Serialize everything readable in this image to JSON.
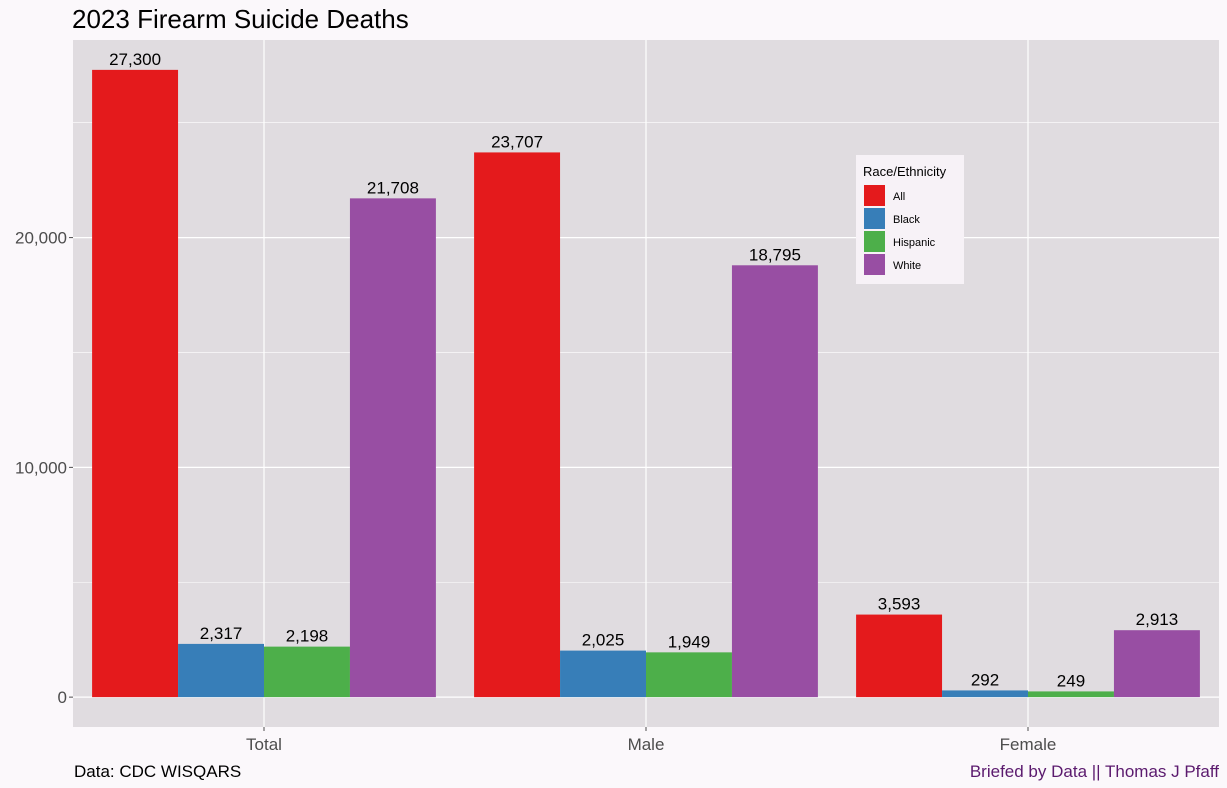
{
  "chart_data": {
    "type": "bar",
    "title": "2023 Firearm Suicide Deaths",
    "categories": [
      "Total",
      "Male",
      "Female"
    ],
    "series": [
      {
        "name": "All",
        "color": "#E41A1C",
        "values": [
          27300,
          23707,
          3593
        ],
        "labels": [
          "27,300",
          "23,707",
          "3,593"
        ]
      },
      {
        "name": "Black",
        "color": "#377EB8",
        "values": [
          2317,
          2025,
          292
        ],
        "labels": [
          "2,317",
          "2,025",
          "292"
        ]
      },
      {
        "name": "Hispanic",
        "color": "#4DAF4A",
        "values": [
          2198,
          1949,
          249
        ],
        "labels": [
          "2,198",
          "1,949",
          "249"
        ]
      },
      {
        "name": "White",
        "color": "#984EA3",
        "values": [
          21708,
          18795,
          2913
        ],
        "labels": [
          "21,708",
          "18,795",
          "2,913"
        ]
      }
    ],
    "yticks": [
      0,
      10000,
      20000
    ],
    "ytick_labels": [
      "0",
      "10,000",
      "20,000"
    ],
    "ylim": [
      -1300,
      28600
    ],
    "grid": true,
    "legend": {
      "title": "Race/Ethnicity",
      "placement": "top-right inside"
    },
    "panel_color": "#E0DCE0"
  },
  "captions": {
    "left": "Data: CDC WISQARS",
    "right": "Briefed by Data || Thomas J Pfaff"
  }
}
